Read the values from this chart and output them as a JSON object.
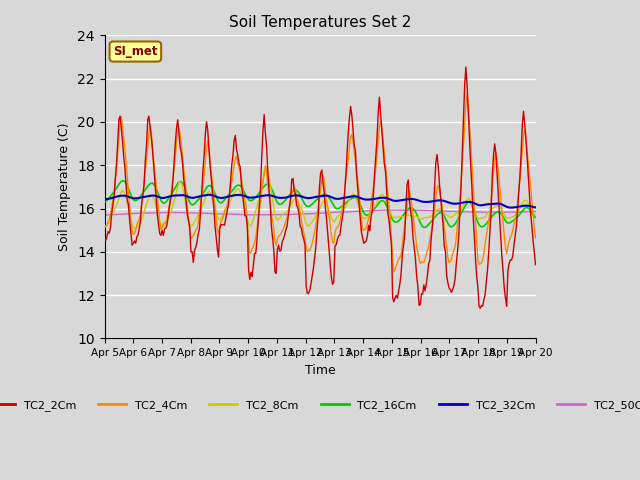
{
  "title": "Soil Temperatures Set 2",
  "xlabel": "Time",
  "ylabel": "Soil Temperature (C)",
  "ylim": [
    10,
    24
  ],
  "yticks": [
    10,
    12,
    14,
    16,
    18,
    20,
    22,
    24
  ],
  "background_color": "#d8d8d8",
  "plot_bg_color": "#d8d8d8",
  "annotation_text": "SI_met",
  "annotation_bg": "#ffff99",
  "annotation_border": "#996600",
  "series_colors": {
    "TC2_2Cm": "#cc0000",
    "TC2_4Cm": "#ff8800",
    "TC2_8Cm": "#cccc00",
    "TC2_16Cm": "#00cc00",
    "TC2_32Cm": "#0000bb",
    "TC2_50Cm": "#cc66cc"
  },
  "x_tick_labels": [
    "Apr 5",
    "Apr 6",
    "Apr 7",
    "Apr 8",
    "Apr 9",
    "Apr 10",
    "Apr 11",
    "Apr 12",
    "Apr 13",
    "Apr 14",
    "Apr 15",
    "Apr 16",
    "Apr 17",
    "Apr 18",
    "Apr 19",
    "Apr 20"
  ]
}
